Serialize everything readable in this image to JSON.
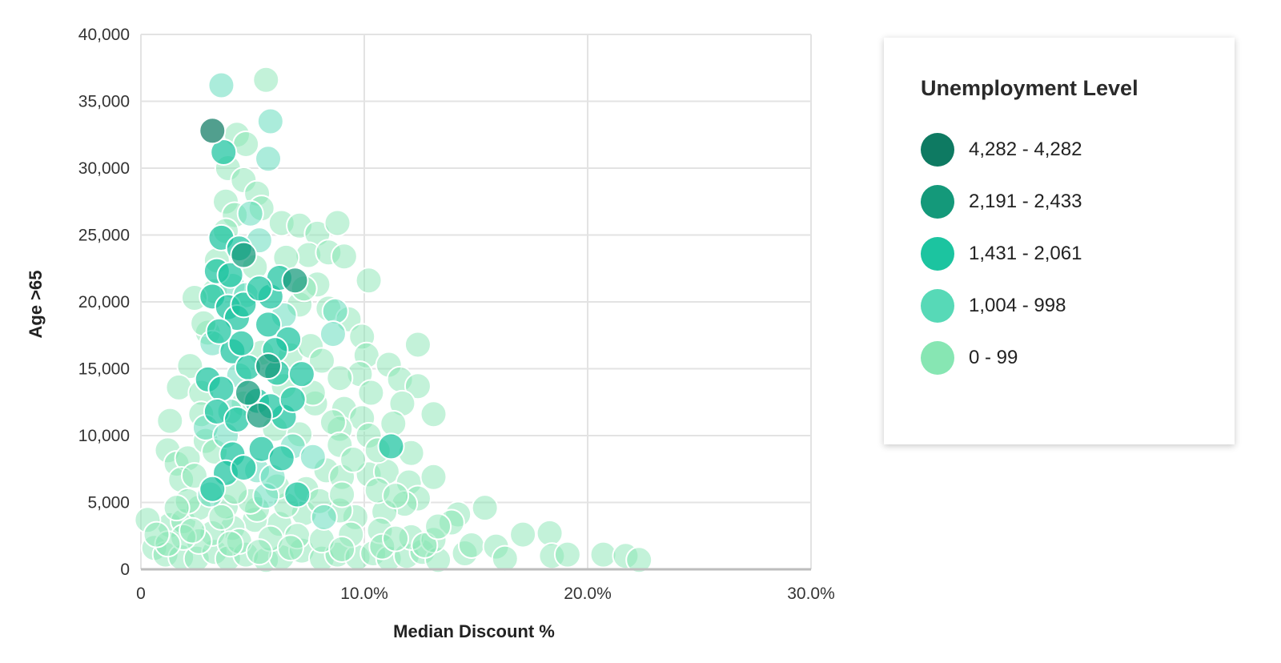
{
  "chart_data": {
    "type": "scatter",
    "xlabel": "Median Discount %",
    "ylabel": "Age >65",
    "xlim": [
      0,
      30
    ],
    "ylim": [
      0,
      40000
    ],
    "x_ticks": [
      "0",
      "10.0%",
      "20.0%",
      "30.0%"
    ],
    "y_ticks": [
      "0",
      "5,000",
      "10,000",
      "15,000",
      "20,000",
      "25,000",
      "30,000",
      "35,000",
      "40,000"
    ],
    "grid": true,
    "legend": {
      "title": "Unemployment Level",
      "placement": "right",
      "items": [
        {
          "label": "4,282 - 4,282",
          "color": "#0e7a62"
        },
        {
          "label": "2,191 - 2,433",
          "color": "#14997a"
        },
        {
          "label": "1,431 - 2,061",
          "color": "#1cc4a0"
        },
        {
          "label": "1,004 - 998",
          "color": "#57d9b7"
        },
        {
          "label": "0 - 99",
          "color": "#87e6b3"
        }
      ]
    },
    "series": [
      {
        "group": 0,
        "points": [
          [
            3.2,
            32800
          ]
        ]
      },
      {
        "group": 1,
        "points": [
          [
            4.6,
            23500
          ],
          [
            5.3,
            11500
          ],
          [
            4.8,
            13200
          ],
          [
            5.7,
            15200
          ],
          [
            6.9,
            21600
          ]
        ]
      },
      {
        "group": 2,
        "points": [
          [
            3.7,
            31200
          ],
          [
            3.6,
            24800
          ],
          [
            3.4,
            22300
          ],
          [
            4.0,
            22000
          ],
          [
            4.4,
            24000
          ],
          [
            3.2,
            20400
          ],
          [
            3.9,
            19600
          ],
          [
            4.3,
            18800
          ],
          [
            5.8,
            20400
          ],
          [
            6.2,
            21800
          ],
          [
            3.0,
            14200
          ],
          [
            3.6,
            13500
          ],
          [
            4.1,
            16300
          ],
          [
            3.4,
            11800
          ],
          [
            4.3,
            11200
          ],
          [
            4.8,
            15100
          ],
          [
            5.2,
            12600
          ],
          [
            5.7,
            18300
          ],
          [
            6.1,
            14700
          ],
          [
            6.4,
            11400
          ],
          [
            7.2,
            14600
          ],
          [
            4.1,
            8600
          ],
          [
            3.8,
            7200
          ],
          [
            4.6,
            7600
          ],
          [
            5.4,
            9000
          ],
          [
            6.3,
            8300
          ],
          [
            7.0,
            5600
          ],
          [
            3.2,
            6000
          ],
          [
            5.8,
            12200
          ],
          [
            6.6,
            17200
          ],
          [
            4.6,
            19800
          ],
          [
            5.3,
            21000
          ],
          [
            11.2,
            9200
          ],
          [
            4.5,
            16900
          ],
          [
            3.5,
            17800
          ],
          [
            6.0,
            16400
          ],
          [
            6.8,
            12700
          ]
        ]
      },
      {
        "group": 3,
        "points": [
          [
            3.6,
            36200
          ],
          [
            5.8,
            33500
          ],
          [
            5.7,
            30700
          ],
          [
            5.3,
            24600
          ],
          [
            4.1,
            21200
          ],
          [
            3.2,
            16900
          ],
          [
            4.0,
            11800
          ],
          [
            8.7,
            19300
          ],
          [
            8.6,
            17600
          ],
          [
            6.8,
            9200
          ],
          [
            5.6,
            5500
          ],
          [
            7.7,
            8400
          ],
          [
            3.1,
            5600
          ],
          [
            4.7,
            20500
          ],
          [
            6.4,
            19000
          ],
          [
            5.2,
            7400
          ],
          [
            2.9,
            10600
          ],
          [
            3.8,
            10000
          ],
          [
            4.9,
            26600
          ],
          [
            5.9,
            6900
          ],
          [
            8.2,
            3900
          ],
          [
            4.4,
            14500
          ]
        ]
      },
      {
        "group": 4,
        "points": [
          [
            5.6,
            36600
          ],
          [
            4.3,
            32500
          ],
          [
            4.7,
            31800
          ],
          [
            3.9,
            30000
          ],
          [
            4.6,
            29100
          ],
          [
            5.2,
            28100
          ],
          [
            3.8,
            27500
          ],
          [
            4.2,
            26500
          ],
          [
            5.4,
            27000
          ],
          [
            6.3,
            25900
          ],
          [
            7.1,
            25700
          ],
          [
            7.9,
            25100
          ],
          [
            8.8,
            25900
          ],
          [
            7.5,
            23500
          ],
          [
            8.4,
            23700
          ],
          [
            9.1,
            23400
          ],
          [
            10.2,
            21600
          ],
          [
            7.9,
            21300
          ],
          [
            8.4,
            19500
          ],
          [
            7.1,
            19800
          ],
          [
            9.3,
            18700
          ],
          [
            9.9,
            17400
          ],
          [
            10.1,
            16000
          ],
          [
            11.1,
            15300
          ],
          [
            12.4,
            16800
          ],
          [
            11.6,
            14200
          ],
          [
            12.4,
            13700
          ],
          [
            9.8,
            14600
          ],
          [
            10.3,
            13200
          ],
          [
            11.7,
            12400
          ],
          [
            13.1,
            11600
          ],
          [
            9.1,
            12000
          ],
          [
            9.9,
            11300
          ],
          [
            8.9,
            10500
          ],
          [
            10.2,
            10000
          ],
          [
            11.3,
            10900
          ],
          [
            12.1,
            8700
          ],
          [
            8.3,
            7400
          ],
          [
            9.0,
            6900
          ],
          [
            10.2,
            7100
          ],
          [
            11.0,
            7300
          ],
          [
            12.0,
            6500
          ],
          [
            13.1,
            6900
          ],
          [
            2.2,
            15200
          ],
          [
            1.7,
            13600
          ],
          [
            1.3,
            11100
          ],
          [
            1.2,
            8900
          ],
          [
            1.6,
            7900
          ],
          [
            2.1,
            8300
          ],
          [
            1.8,
            6700
          ],
          [
            2.4,
            7000
          ],
          [
            1.3,
            3300
          ],
          [
            1.9,
            3600
          ],
          [
            2.6,
            4600
          ],
          [
            0.3,
            3700
          ],
          [
            0.6,
            1600
          ],
          [
            1.1,
            1100
          ],
          [
            1.8,
            900
          ],
          [
            2.5,
            800
          ],
          [
            3.3,
            1300
          ],
          [
            3.9,
            800
          ],
          [
            4.7,
            1100
          ],
          [
            5.6,
            700
          ],
          [
            6.3,
            900
          ],
          [
            7.2,
            1400
          ],
          [
            8.1,
            800
          ],
          [
            8.8,
            1100
          ],
          [
            9.7,
            900
          ],
          [
            10.4,
            1200
          ],
          [
            11.1,
            800
          ],
          [
            11.9,
            1000
          ],
          [
            12.6,
            1300
          ],
          [
            13.3,
            700
          ],
          [
            14.5,
            1200
          ],
          [
            14.8,
            1800
          ],
          [
            15.9,
            1700
          ],
          [
            16.3,
            800
          ],
          [
            17.1,
            2600
          ],
          [
            18.3,
            2700
          ],
          [
            18.4,
            1000
          ],
          [
            19.1,
            1100
          ],
          [
            20.7,
            1100
          ],
          [
            21.7,
            1000
          ],
          [
            22.3,
            700
          ],
          [
            14.2,
            4100
          ],
          [
            15.4,
            4600
          ],
          [
            13.9,
            3500
          ],
          [
            12.4,
            5300
          ],
          [
            11.8,
            4900
          ],
          [
            10.9,
            4300
          ],
          [
            9.6,
            3900
          ],
          [
            8.9,
            4400
          ],
          [
            7.3,
            4200
          ],
          [
            6.2,
            3400
          ],
          [
            5.1,
            3700
          ],
          [
            4.1,
            3100
          ],
          [
            3.2,
            2700
          ],
          [
            2.6,
            2100
          ],
          [
            1.9,
            2400
          ],
          [
            1.2,
            1900
          ],
          [
            4.4,
            2100
          ],
          [
            5.8,
            2300
          ],
          [
            7.0,
            2500
          ],
          [
            8.1,
            2200
          ],
          [
            9.4,
            2600
          ],
          [
            10.7,
            2900
          ],
          [
            12.1,
            2400
          ],
          [
            13.1,
            2200
          ],
          [
            2.9,
            9600
          ],
          [
            3.3,
            8800
          ],
          [
            2.7,
            13200
          ],
          [
            3.0,
            17700
          ],
          [
            3.3,
            20800
          ],
          [
            2.4,
            20300
          ],
          [
            2.8,
            18400
          ],
          [
            2.7,
            11600
          ],
          [
            6.7,
            16000
          ],
          [
            7.6,
            16700
          ],
          [
            8.1,
            15600
          ],
          [
            8.9,
            14300
          ],
          [
            7.8,
            12400
          ],
          [
            8.6,
            11000
          ],
          [
            8.9,
            9300
          ],
          [
            9.5,
            8200
          ],
          [
            10.6,
            8900
          ],
          [
            7.4,
            6000
          ],
          [
            8.0,
            5100
          ],
          [
            6.5,
            4800
          ],
          [
            5.2,
            4500
          ],
          [
            9.0,
            5600
          ],
          [
            10.6,
            5900
          ],
          [
            11.4,
            5500
          ],
          [
            3.8,
            4700
          ],
          [
            4.9,
            5100
          ],
          [
            2.1,
            5100
          ],
          [
            1.6,
            4600
          ],
          [
            0.7,
            2600
          ],
          [
            2.3,
            2900
          ],
          [
            3.6,
            3900
          ],
          [
            6.7,
            1600
          ],
          [
            5.3,
            1300
          ],
          [
            4.0,
            1900
          ],
          [
            9.0,
            1500
          ],
          [
            10.8,
            1700
          ],
          [
            11.4,
            2300
          ],
          [
            12.7,
            1800
          ],
          [
            13.3,
            3200
          ],
          [
            3.4,
            23100
          ],
          [
            3.8,
            25300
          ],
          [
            5.1,
            22600
          ],
          [
            6.5,
            23300
          ],
          [
            7.3,
            21000
          ],
          [
            4.6,
            12400
          ],
          [
            6.0,
            10500
          ],
          [
            7.1,
            10100
          ],
          [
            7.7,
            13200
          ],
          [
            5.4,
            16200
          ],
          [
            6.4,
            13700
          ],
          [
            4.2,
            5800
          ],
          [
            6.1,
            6200
          ]
        ]
      }
    ]
  }
}
